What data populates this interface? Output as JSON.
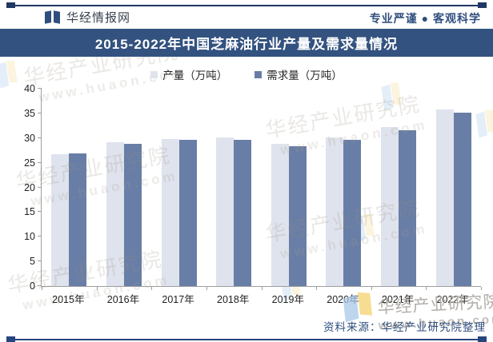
{
  "header": {
    "brand": "华经情报网",
    "slogan": "专业严谨 ● 客观科学"
  },
  "title": "2015-2022年中国芝麻油行业产量及需求量情况",
  "legend": [
    {
      "label": "产量（万吨）",
      "color": "#dfe3ed"
    },
    {
      "label": "需求量（万吨）",
      "color": "#697ea6"
    }
  ],
  "chart_data": {
    "type": "bar",
    "categories": [
      "2015年",
      "2016年",
      "2017年",
      "2018年",
      "2019年",
      "2020年",
      "2021年",
      "2022年"
    ],
    "series": [
      {
        "name": "产量（万吨）",
        "color": "#dfe3ed",
        "values": [
          26.8,
          29.1,
          29.8,
          30.1,
          28.9,
          30.2,
          32.2,
          35.8
        ]
      },
      {
        "name": "需求量（万吨）",
        "color": "#697ea6",
        "values": [
          26.9,
          28.9,
          29.6,
          29.7,
          28.4,
          29.7,
          31.6,
          35.2
        ]
      }
    ],
    "title": "2015-2022年中国芝麻油行业产量及需求量情况",
    "xlabel": "",
    "ylabel": "",
    "ylim": [
      0,
      40
    ],
    "yticks": [
      0,
      5,
      10,
      15,
      20,
      25,
      30,
      35,
      40
    ],
    "grid": false,
    "legend_position": "top"
  },
  "footer": {
    "source": "资料来源：华经产业研究院整理"
  },
  "watermark": {
    "name": "华经产业研究院",
    "url": "www.huaon.com"
  },
  "colors": {
    "banner": "#33527f",
    "accent": "#2f4e7e",
    "rule": "#1f3864",
    "bar_production": "#dfe3ed",
    "bar_demand": "#697ea6"
  }
}
